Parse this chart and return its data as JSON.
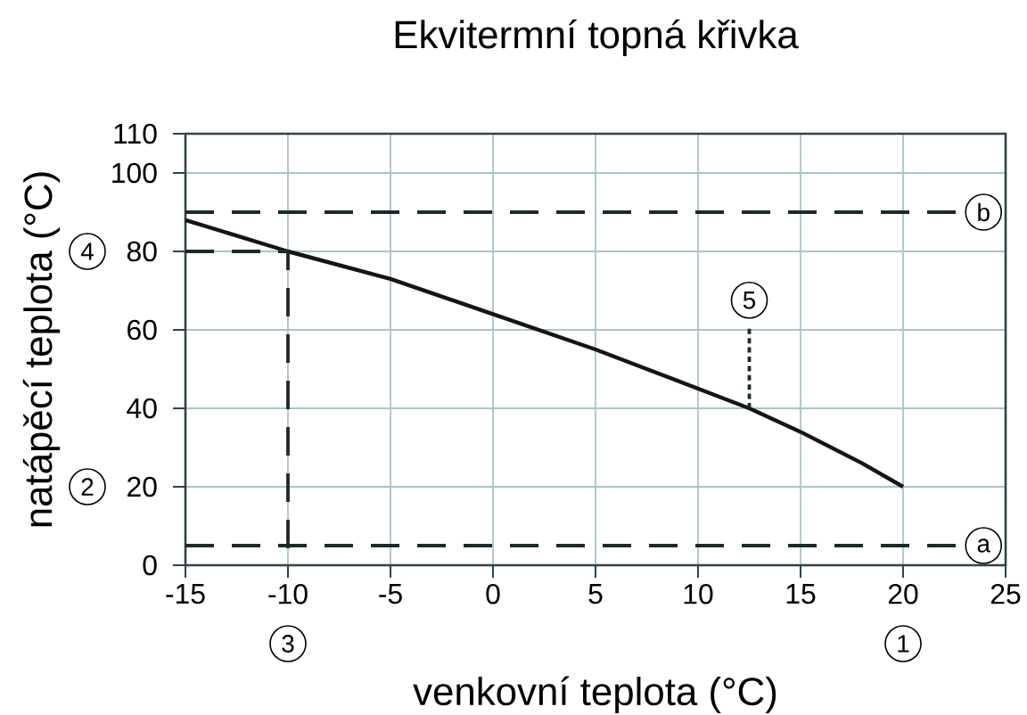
{
  "chart_data": {
    "type": "line",
    "title": "Ekvitermní topná křivka",
    "xlabel": "venkovní teplota (°C)",
    "ylabel": "natápěcí teplota (°C)",
    "xlim": [
      -15,
      25
    ],
    "xticks": [
      -15,
      -10,
      -5,
      0,
      5,
      10,
      15,
      20,
      25
    ],
    "ylim": [
      0,
      110
    ],
    "yticks": [
      0,
      20,
      40,
      60,
      80,
      100,
      110
    ],
    "grid": true,
    "series": [
      {
        "x": [
          -15,
          -10,
          -5,
          0,
          5,
          10,
          12.5,
          15,
          18,
          20
        ],
        "values": [
          88,
          80,
          73,
          64,
          55,
          45,
          40,
          34,
          26,
          20
        ],
        "color": "#151515"
      },
      {
        "x": [
          -15,
          -10,
          -10
        ],
        "values": [
          80,
          80,
          0
        ],
        "color": "#1c2a2c",
        "line_style": "dashed"
      },
      {
        "name": "5",
        "x": [
          12.5,
          12.5
        ],
        "values": [
          40,
          61
        ],
        "color": "#1c2a2c",
        "line_style": "dotted"
      }
    ],
    "ref_lines": [
      {
        "axis": "y",
        "value": 90,
        "label": "b",
        "color": "#1c2a2c",
        "line_style": "dashed"
      },
      {
        "axis": "y",
        "value": 5,
        "label": "a",
        "color": "#1c2a2c",
        "line_style": "dashed"
      }
    ],
    "annotations": [
      "1",
      "2",
      {
        "text": "3",
        "x": -10,
        "y": 0
      },
      "4"
    ]
  }
}
